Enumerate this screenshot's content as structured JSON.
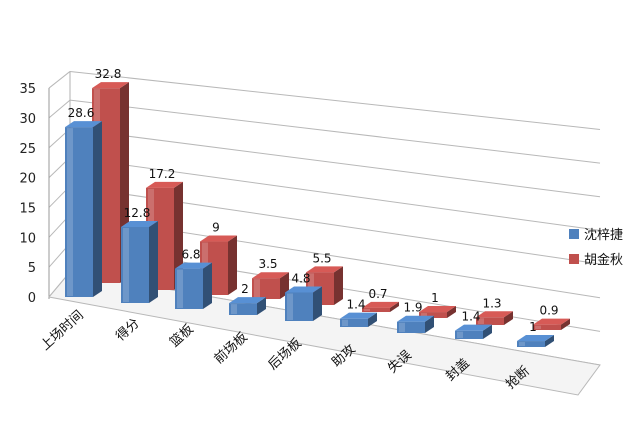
{
  "chart_data": {
    "type": "bar",
    "categories": [
      "上场时间",
      "得分",
      "篮板",
      "前场板",
      "后场板",
      "助攻",
      "失误",
      "封盖",
      "抢断"
    ],
    "series": [
      {
        "name": "沈梓捷",
        "values": [
          28.6,
          12.8,
          6.8,
          2,
          4.8,
          1.4,
          1.9,
          1.4,
          1
        ],
        "labels": [
          "28.6",
          "12.8",
          "6.8",
          "2",
          "4.8",
          "1.4",
          "1.9",
          "1.4",
          "1"
        ]
      },
      {
        "name": "胡金秋",
        "values": [
          32.8,
          17.2,
          9,
          3.5,
          5.5,
          0.7,
          1,
          1.3,
          0.9
        ],
        "labels": [
          "32.8",
          "17.2",
          "9",
          "3.5",
          "5.5",
          "0.7",
          "1",
          "1.3",
          "0.9"
        ]
      }
    ],
    "y_ticks": [
      "0",
      "5",
      "10",
      "15",
      "20",
      "25",
      "30",
      "35"
    ],
    "ylim": [
      0,
      35
    ],
    "grid": true,
    "legend_position": "right",
    "colors": {
      "series1": "#4f81bd",
      "series2": "#c0504d"
    }
  }
}
